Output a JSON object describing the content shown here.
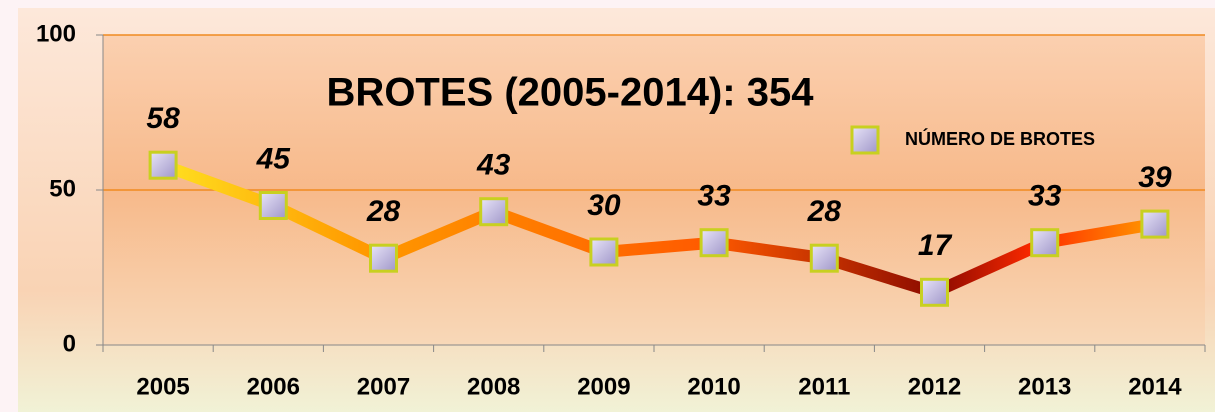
{
  "chart_data": {
    "type": "line",
    "title": "BROTES (2005-2014): 354",
    "categories": [
      "2005",
      "2006",
      "2007",
      "2008",
      "2009",
      "2010",
      "2011",
      "2012",
      "2013",
      "2014"
    ],
    "series": [
      {
        "name": "NÚMERO DE BROTES",
        "color": "#ff5a00",
        "values": [
          58,
          45,
          28,
          43,
          30,
          33,
          28,
          17,
          33,
          39
        ]
      }
    ],
    "ylim": [
      0,
      100
    ],
    "yticks": [
      0,
      50,
      100
    ],
    "grid": true,
    "legend": "top-right"
  }
}
